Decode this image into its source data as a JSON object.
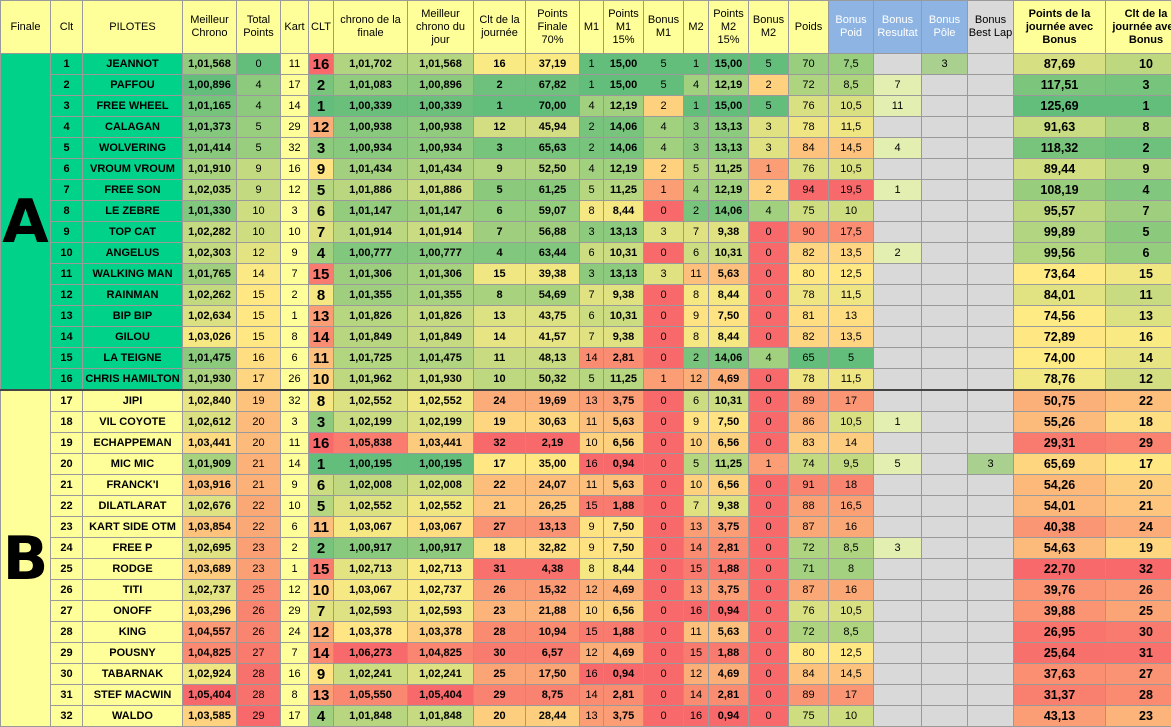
{
  "headers": [
    "Finale",
    "Clt",
    "PILOTES",
    "Meilleur Chrono",
    "Total Points",
    "Kart",
    "CLT",
    "chrono de la finale",
    "Meilleur chrono du jour",
    "Clt de la journée",
    "Points Finale 70%",
    "M1",
    "Points M1 15%",
    "Bonus M1",
    "M2",
    "Points M2 15%",
    "Bonus M2",
    "Poids",
    "Bonus Poid",
    "Bonus Resultat",
    "Bonus Pôle",
    "Bonus Best Lap",
    "Points de la journée avec Bonus",
    "Clt de la journée avec Bonus"
  ],
  "groups": [
    "A",
    "B"
  ],
  "rows": [
    [
      "1",
      "JEANNOT",
      "1,01,568",
      "0",
      "11",
      "16",
      "1,01,702",
      "1,01,568",
      "16",
      "37,19",
      "1",
      "15,00",
      "5",
      "1",
      "15,00",
      "5",
      "70",
      "7,5",
      "",
      "3",
      "",
      "87,69",
      "10"
    ],
    [
      "2",
      "PAFFOU",
      "1,00,896",
      "4",
      "17",
      "2",
      "1,01,083",
      "1,00,896",
      "2",
      "67,82",
      "1",
      "15,00",
      "5",
      "4",
      "12,19",
      "2",
      "72",
      "8,5",
      "7",
      "",
      "",
      "117,51",
      "3"
    ],
    [
      "3",
      "FREE WHEEL",
      "1,01,165",
      "4",
      "14",
      "1",
      "1,00,339",
      "1,00,339",
      "1",
      "70,00",
      "4",
      "12,19",
      "2",
      "1",
      "15,00",
      "5",
      "76",
      "10,5",
      "11",
      "",
      "",
      "125,69",
      "1"
    ],
    [
      "4",
      "CALAGAN",
      "1,01,373",
      "5",
      "29",
      "12",
      "1,00,938",
      "1,00,938",
      "12",
      "45,94",
      "2",
      "14,06",
      "4",
      "3",
      "13,13",
      "3",
      "78",
      "11,5",
      "",
      "",
      "",
      "91,63",
      "8"
    ],
    [
      "5",
      "WOLVERING",
      "1,01,414",
      "5",
      "32",
      "3",
      "1,00,934",
      "1,00,934",
      "3",
      "65,63",
      "2",
      "14,06",
      "4",
      "3",
      "13,13",
      "3",
      "84",
      "14,5",
      "4",
      "",
      "",
      "118,32",
      "2"
    ],
    [
      "6",
      "VROUM VROUM",
      "1,01,910",
      "9",
      "16",
      "9",
      "1,01,434",
      "1,01,434",
      "9",
      "52,50",
      "4",
      "12,19",
      "2",
      "5",
      "11,25",
      "1",
      "76",
      "10,5",
      "",
      "",
      "",
      "89,44",
      "9"
    ],
    [
      "7",
      "FREE SON",
      "1,02,035",
      "9",
      "12",
      "5",
      "1,01,886",
      "1,01,886",
      "5",
      "61,25",
      "5",
      "11,25",
      "1",
      "4",
      "12,19",
      "2",
      "94",
      "19,5",
      "1",
      "",
      "",
      "108,19",
      "4"
    ],
    [
      "8",
      "LE ZEBRE",
      "1,01,330",
      "10",
      "3",
      "6",
      "1,01,147",
      "1,01,147",
      "6",
      "59,07",
      "8",
      "8,44",
      "0",
      "2",
      "14,06",
      "4",
      "75",
      "10",
      "",
      "",
      "",
      "95,57",
      "7"
    ],
    [
      "9",
      "TOP CAT",
      "1,02,282",
      "10",
      "10",
      "7",
      "1,01,914",
      "1,01,914",
      "7",
      "56,88",
      "3",
      "13,13",
      "3",
      "7",
      "9,38",
      "0",
      "90",
      "17,5",
      "",
      "",
      "",
      "99,89",
      "5"
    ],
    [
      "10",
      "ANGELUS",
      "1,02,303",
      "12",
      "9",
      "4",
      "1,00,777",
      "1,00,777",
      "4",
      "63,44",
      "6",
      "10,31",
      "0",
      "6",
      "10,31",
      "0",
      "82",
      "13,5",
      "2",
      "",
      "",
      "99,56",
      "6"
    ],
    [
      "11",
      "WALKING MAN",
      "1,01,765",
      "14",
      "7",
      "15",
      "1,01,306",
      "1,01,306",
      "15",
      "39,38",
      "3",
      "13,13",
      "3",
      "11",
      "5,63",
      "0",
      "80",
      "12,5",
      "",
      "",
      "",
      "73,64",
      "15"
    ],
    [
      "12",
      "RAINMAN",
      "1,02,262",
      "15",
      "2",
      "8",
      "1,01,355",
      "1,01,355",
      "8",
      "54,69",
      "7",
      "9,38",
      "0",
      "8",
      "8,44",
      "0",
      "78",
      "11,5",
      "",
      "",
      "",
      "84,01",
      "11"
    ],
    [
      "13",
      "BIP BIP",
      "1,02,634",
      "15",
      "1",
      "13",
      "1,01,826",
      "1,01,826",
      "13",
      "43,75",
      "6",
      "10,31",
      "0",
      "9",
      "7,50",
      "0",
      "81",
      "13",
      "",
      "",
      "",
      "74,56",
      "13"
    ],
    [
      "14",
      "GILOU",
      "1,03,026",
      "15",
      "8",
      "14",
      "1,01,849",
      "1,01,849",
      "14",
      "41,57",
      "7",
      "9,38",
      "0",
      "8",
      "8,44",
      "0",
      "82",
      "13,5",
      "",
      "",
      "",
      "72,89",
      "16"
    ],
    [
      "15",
      "LA TEIGNE",
      "1,01,475",
      "16",
      "6",
      "11",
      "1,01,725",
      "1,01,475",
      "11",
      "48,13",
      "14",
      "2,81",
      "0",
      "2",
      "14,06",
      "4",
      "65",
      "5",
      "",
      "",
      "",
      "74,00",
      "14"
    ],
    [
      "16",
      "CHRIS HAMILTON",
      "1,01,930",
      "17",
      "26",
      "10",
      "1,01,962",
      "1,01,930",
      "10",
      "50,32",
      "5",
      "11,25",
      "1",
      "12",
      "4,69",
      "0",
      "78",
      "11,5",
      "",
      "",
      "",
      "78,76",
      "12"
    ],
    [
      "17",
      "JIPI",
      "1,02,840",
      "19",
      "32",
      "8",
      "1,02,552",
      "1,02,552",
      "24",
      "19,69",
      "13",
      "3,75",
      "0",
      "6",
      "10,31",
      "0",
      "89",
      "17",
      "",
      "",
      "",
      "50,75",
      "22"
    ],
    [
      "18",
      "VIL COYOTE",
      "1,02,612",
      "20",
      "3",
      "3",
      "1,02,199",
      "1,02,199",
      "19",
      "30,63",
      "11",
      "5,63",
      "0",
      "9",
      "7,50",
      "0",
      "86",
      "10,5",
      "1",
      "",
      "",
      "55,26",
      "18"
    ],
    [
      "19",
      "ECHAPPEMAN",
      "1,03,441",
      "20",
      "11",
      "16",
      "1,05,838",
      "1,03,441",
      "32",
      "2,19",
      "10",
      "6,56",
      "0",
      "10",
      "6,56",
      "0",
      "83",
      "14",
      "",
      "",
      "",
      "29,31",
      "29"
    ],
    [
      "20",
      "MIC MIC",
      "1,01,909",
      "21",
      "14",
      "1",
      "1,00,195",
      "1,00,195",
      "17",
      "35,00",
      "16",
      "0,94",
      "0",
      "5",
      "11,25",
      "1",
      "74",
      "9,5",
      "5",
      "",
      "3",
      "65,69",
      "17"
    ],
    [
      "21",
      "FRANCK'I",
      "1,03,916",
      "21",
      "9",
      "6",
      "1,02,008",
      "1,02,008",
      "22",
      "24,07",
      "11",
      "5,63",
      "0",
      "10",
      "6,56",
      "0",
      "91",
      "18",
      "",
      "",
      "",
      "54,26",
      "20"
    ],
    [
      "22",
      "DILATLARAT",
      "1,02,676",
      "22",
      "10",
      "5",
      "1,02,552",
      "1,02,552",
      "21",
      "26,25",
      "15",
      "1,88",
      "0",
      "7",
      "9,38",
      "0",
      "88",
      "16,5",
      "",
      "",
      "",
      "54,01",
      "21"
    ],
    [
      "23",
      "KART SIDE OTM",
      "1,03,854",
      "22",
      "6",
      "11",
      "1,03,067",
      "1,03,067",
      "27",
      "13,13",
      "9",
      "7,50",
      "0",
      "13",
      "3,75",
      "0",
      "87",
      "16",
      "",
      "",
      "",
      "40,38",
      "24"
    ],
    [
      "24",
      "FREE P",
      "1,02,695",
      "23",
      "2",
      "2",
      "1,00,917",
      "1,00,917",
      "18",
      "32,82",
      "9",
      "7,50",
      "0",
      "14",
      "2,81",
      "0",
      "72",
      "8,5",
      "3",
      "",
      "",
      "54,63",
      "19"
    ],
    [
      "25",
      "RODGE",
      "1,03,689",
      "23",
      "1",
      "15",
      "1,02,713",
      "1,02,713",
      "31",
      "4,38",
      "8",
      "8,44",
      "0",
      "15",
      "1,88",
      "0",
      "71",
      "8",
      "",
      "",
      "",
      "22,70",
      "32"
    ],
    [
      "26",
      "TITI",
      "1,02,737",
      "25",
      "12",
      "10",
      "1,03,067",
      "1,02,737",
      "26",
      "15,32",
      "12",
      "4,69",
      "0",
      "13",
      "3,75",
      "0",
      "87",
      "16",
      "",
      "",
      "",
      "39,76",
      "26"
    ],
    [
      "27",
      "ONOFF",
      "1,03,296",
      "26",
      "29",
      "7",
      "1,02,593",
      "1,02,593",
      "23",
      "21,88",
      "10",
      "6,56",
      "0",
      "16",
      "0,94",
      "0",
      "76",
      "10,5",
      "",
      "",
      "",
      "39,88",
      "25"
    ],
    [
      "28",
      "KING",
      "1,04,557",
      "26",
      "24",
      "12",
      "1,03,378",
      "1,03,378",
      "28",
      "10,94",
      "15",
      "1,88",
      "0",
      "11",
      "5,63",
      "0",
      "72",
      "8,5",
      "",
      "",
      "",
      "26,95",
      "30"
    ],
    [
      "29",
      "POUSNY",
      "1,04,825",
      "27",
      "7",
      "14",
      "1,06,273",
      "1,04,825",
      "30",
      "6,57",
      "12",
      "4,69",
      "0",
      "15",
      "1,88",
      "0",
      "80",
      "12,5",
      "",
      "",
      "",
      "25,64",
      "31"
    ],
    [
      "30",
      "TABARNAK",
      "1,02,924",
      "28",
      "16",
      "9",
      "1,02,241",
      "1,02,241",
      "25",
      "17,50",
      "16",
      "0,94",
      "0",
      "12",
      "4,69",
      "0",
      "84",
      "14,5",
      "",
      "",
      "",
      "37,63",
      "27"
    ],
    [
      "31",
      "STEF MACWIN",
      "1,05,404",
      "28",
      "8",
      "13",
      "1,05,550",
      "1,05,404",
      "29",
      "8,75",
      "14",
      "2,81",
      "0",
      "14",
      "2,81",
      "0",
      "89",
      "17",
      "",
      "",
      "",
      "31,37",
      "28"
    ],
    [
      "32",
      "WALDO",
      "1,03,585",
      "29",
      "17",
      "4",
      "1,01,848",
      "1,01,848",
      "20",
      "28,44",
      "13",
      "3,75",
      "0",
      "16",
      "0,94",
      "0",
      "75",
      "10",
      "",
      "",
      "",
      "43,13",
      "23"
    ]
  ]
}
